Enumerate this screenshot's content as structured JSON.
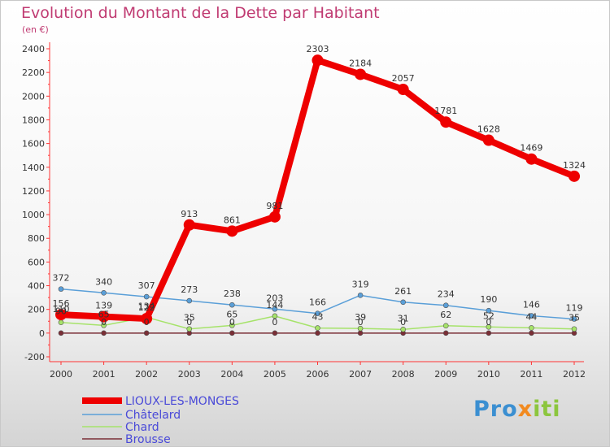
{
  "title": "Evolution du Montant de la Dette par Habitant",
  "subtitle": "(en €)",
  "logo": {
    "text": "Proxiti",
    "parts": [
      "Pro",
      "x",
      "iti"
    ]
  },
  "chart_data": {
    "type": "line",
    "title": "Evolution du Montant de la Dette par Habitant",
    "subtitle": "(en €)",
    "xlabel": "",
    "ylabel": "",
    "ylim": [
      -200,
      2400
    ],
    "yticks": [
      -200,
      0,
      200,
      400,
      600,
      800,
      1000,
      1200,
      1400,
      1600,
      1800,
      2000,
      2200,
      2400
    ],
    "grid": false,
    "legend_position": "bottom-left",
    "categories": [
      "2000",
      "2001",
      "2002",
      "2003",
      "2004",
      "2005",
      "2006",
      "2007",
      "2008",
      "2009",
      "2010",
      "2011",
      "2012"
    ],
    "series": [
      {
        "name": "Brousse",
        "color": "#7a2e36",
        "width": 1.5,
        "marker": 3,
        "show_labels": false,
        "values": [
          0,
          0,
          0,
          0,
          0,
          0,
          0,
          0,
          0,
          0,
          0,
          0,
          0
        ]
      },
      {
        "name": "Chard",
        "color": "#a6e36a",
        "width": 1.5,
        "marker": 3,
        "show_labels": true,
        "values": [
          90,
          65,
          134,
          35,
          65,
          144,
          43,
          39,
          31,
          62,
          52,
          44,
          35
        ],
        "labels": [
          "90",
          "65",
          "134",
          "35",
          "65",
          "144",
          "43",
          "39",
          "31",
          "62",
          "52",
          "44",
          "35"
        ]
      },
      {
        "name": "Châtelard",
        "color": "#5a9fd8",
        "width": 1.5,
        "marker": 3,
        "show_labels": true,
        "values": [
          372,
          340,
          307,
          273,
          238,
          203,
          166,
          319,
          261,
          234,
          190,
          146,
          119
        ],
        "labels": [
          "372",
          "340",
          "307",
          "273",
          "238",
          "203",
          "166",
          "319",
          "261",
          "234",
          "190",
          "146",
          "119"
        ]
      },
      {
        "name": "LIOUX-LES-MONGES",
        "color": "#ee0000",
        "width": 8,
        "marker": 7,
        "show_labels": true,
        "values": [
          156,
          139,
          122,
          913,
          861,
          981,
          2303,
          2184,
          2057,
          1781,
          1628,
          1469,
          1324
        ],
        "labels": [
          "156",
          "139",
          "122",
          "913",
          "861",
          "981",
          "2303",
          "2184",
          "2057",
          "1781",
          "1628",
          "1469",
          "1324"
        ]
      }
    ],
    "extra_labels": [
      {
        "x": "2000",
        "value": 110,
        "text": "110"
      },
      {
        "x": "2001",
        "value": 0,
        "text": "0"
      },
      {
        "x": "2002",
        "value": 0,
        "text": "0"
      },
      {
        "x": "2003",
        "value": 0,
        "text": "0"
      },
      {
        "x": "2004",
        "value": 0,
        "text": "0"
      },
      {
        "x": "2005",
        "value": 0,
        "text": "0"
      },
      {
        "x": "2007",
        "value": 0,
        "text": "0"
      },
      {
        "x": "2008",
        "value": 0,
        "text": "0"
      },
      {
        "x": "2010",
        "value": 0,
        "text": "0"
      }
    ],
    "legend": [
      "LIOUX-LES-MONGES",
      "Châtelard",
      "Chard",
      "Brousse"
    ]
  }
}
